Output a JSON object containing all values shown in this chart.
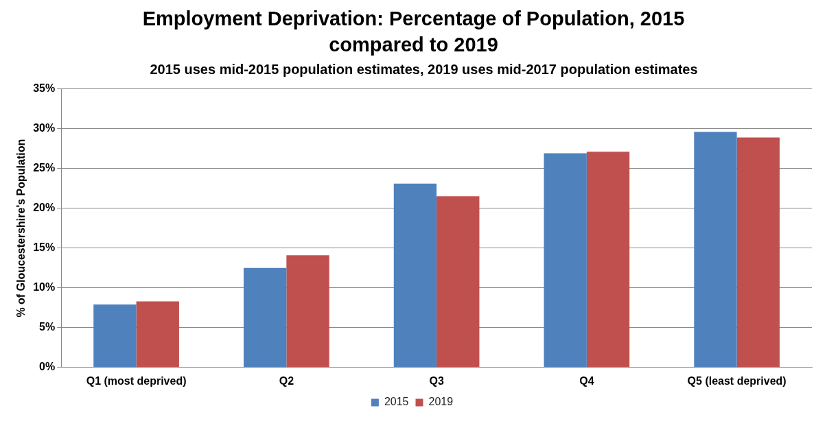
{
  "chart_data": {
    "type": "bar",
    "title": "Employment Deprivation: Percentage of Population, 2015 compared to 2019",
    "subtitle": "2015 uses mid-2015 population estimates, 2019 uses mid-2017 population estimates",
    "ylabel": "% of Gloucestershire's Population",
    "categories": [
      "Q1 (most deprived)",
      "Q2",
      "Q3",
      "Q4",
      "Q5 (least deprived)"
    ],
    "series": [
      {
        "name": "2015",
        "color": "#4f81bd",
        "values": [
          7.9,
          12.5,
          23.1,
          26.9,
          29.6
        ]
      },
      {
        "name": "2019",
        "color": "#c0504d",
        "values": [
          8.3,
          14.1,
          21.5,
          27.1,
          28.9
        ]
      }
    ],
    "ylim": [
      0,
      35
    ],
    "yticks": [
      {
        "value": 0,
        "label": "0%"
      },
      {
        "value": 5,
        "label": "5%"
      },
      {
        "value": 10,
        "label": "10%"
      },
      {
        "value": 15,
        "label": "15%"
      },
      {
        "value": 20,
        "label": "20%"
      },
      {
        "value": 25,
        "label": "25%"
      },
      {
        "value": 30,
        "label": "30%"
      },
      {
        "value": 35,
        "label": "35%"
      }
    ],
    "grid": "y",
    "legend": "bottom"
  }
}
